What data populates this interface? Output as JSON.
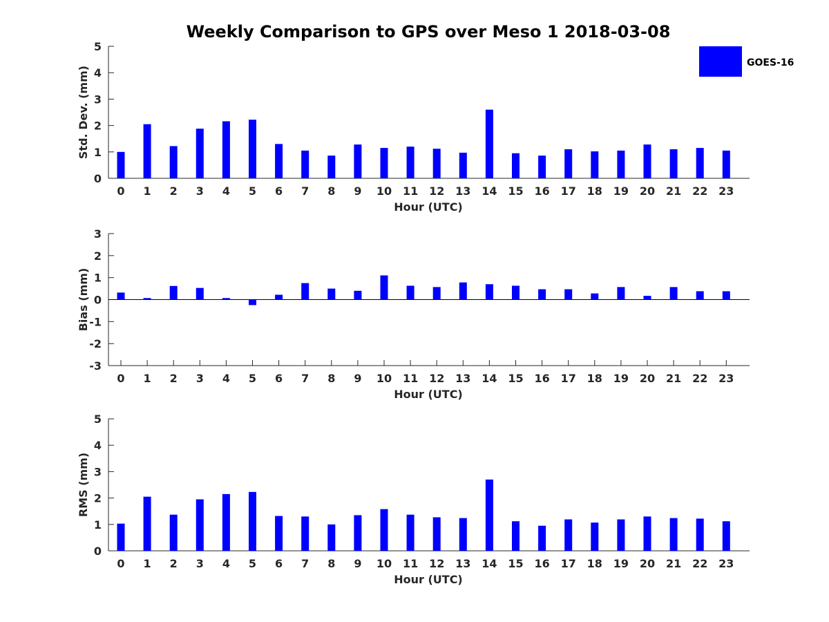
{
  "figure_title": "Weekly Comparison to GPS over Meso 1 2018-03-08",
  "legend": {
    "label": "GOES-16",
    "color": "#0000ff"
  },
  "chart_data": [
    {
      "type": "bar",
      "xlabel": "Hour (UTC)",
      "ylabel": "Std. Dev. (mm)",
      "ylim": [
        0,
        5
      ],
      "yticks": [
        0,
        1,
        2,
        3,
        4,
        5
      ],
      "categories": [
        "0",
        "1",
        "2",
        "3",
        "4",
        "5",
        "6",
        "7",
        "8",
        "9",
        "10",
        "11",
        "12",
        "13",
        "14",
        "15",
        "16",
        "17",
        "18",
        "19",
        "20",
        "21",
        "22",
        "23"
      ],
      "series": [
        {
          "name": "GOES-16",
          "color": "#0000ff",
          "values": [
            1.0,
            2.05,
            1.22,
            1.88,
            2.16,
            2.22,
            1.3,
            1.05,
            0.86,
            1.28,
            1.15,
            1.2,
            1.12,
            0.97,
            2.6,
            0.95,
            0.86,
            1.1,
            1.02,
            1.05,
            1.28,
            1.1,
            1.15,
            1.05
          ]
        }
      ]
    },
    {
      "type": "bar",
      "xlabel": "Hour (UTC)",
      "ylabel": "Bias (mm)",
      "ylim": [
        -3,
        3
      ],
      "yticks": [
        -3,
        -2,
        -1,
        0,
        1,
        2,
        3
      ],
      "zero_line": true,
      "categories": [
        "0",
        "1",
        "2",
        "3",
        "4",
        "5",
        "6",
        "7",
        "8",
        "9",
        "10",
        "11",
        "12",
        "13",
        "14",
        "15",
        "16",
        "17",
        "18",
        "19",
        "20",
        "21",
        "22",
        "23"
      ],
      "series": [
        {
          "name": "GOES-16",
          "color": "#0000ff",
          "values": [
            0.32,
            0.07,
            0.62,
            0.53,
            0.07,
            -0.25,
            0.22,
            0.75,
            0.5,
            0.4,
            1.1,
            0.63,
            0.57,
            0.78,
            0.7,
            0.63,
            0.47,
            0.47,
            0.28,
            0.57,
            0.17,
            0.57,
            0.38,
            0.38
          ]
        }
      ]
    },
    {
      "type": "bar",
      "xlabel": "Hour (UTC)",
      "ylabel": "RMS (mm)",
      "ylim": [
        0,
        5
      ],
      "yticks": [
        0,
        1,
        2,
        3,
        4,
        5
      ],
      "categories": [
        "0",
        "1",
        "2",
        "3",
        "4",
        "5",
        "6",
        "7",
        "8",
        "9",
        "10",
        "11",
        "12",
        "13",
        "14",
        "15",
        "16",
        "17",
        "18",
        "19",
        "20",
        "21",
        "22",
        "23"
      ],
      "series": [
        {
          "name": "GOES-16",
          "color": "#0000ff",
          "values": [
            1.03,
            2.05,
            1.37,
            1.95,
            2.15,
            2.23,
            1.32,
            1.3,
            1.0,
            1.35,
            1.58,
            1.37,
            1.27,
            1.24,
            2.7,
            1.12,
            0.95,
            1.19,
            1.07,
            1.19,
            1.3,
            1.24,
            1.22,
            1.12
          ]
        }
      ]
    }
  ]
}
